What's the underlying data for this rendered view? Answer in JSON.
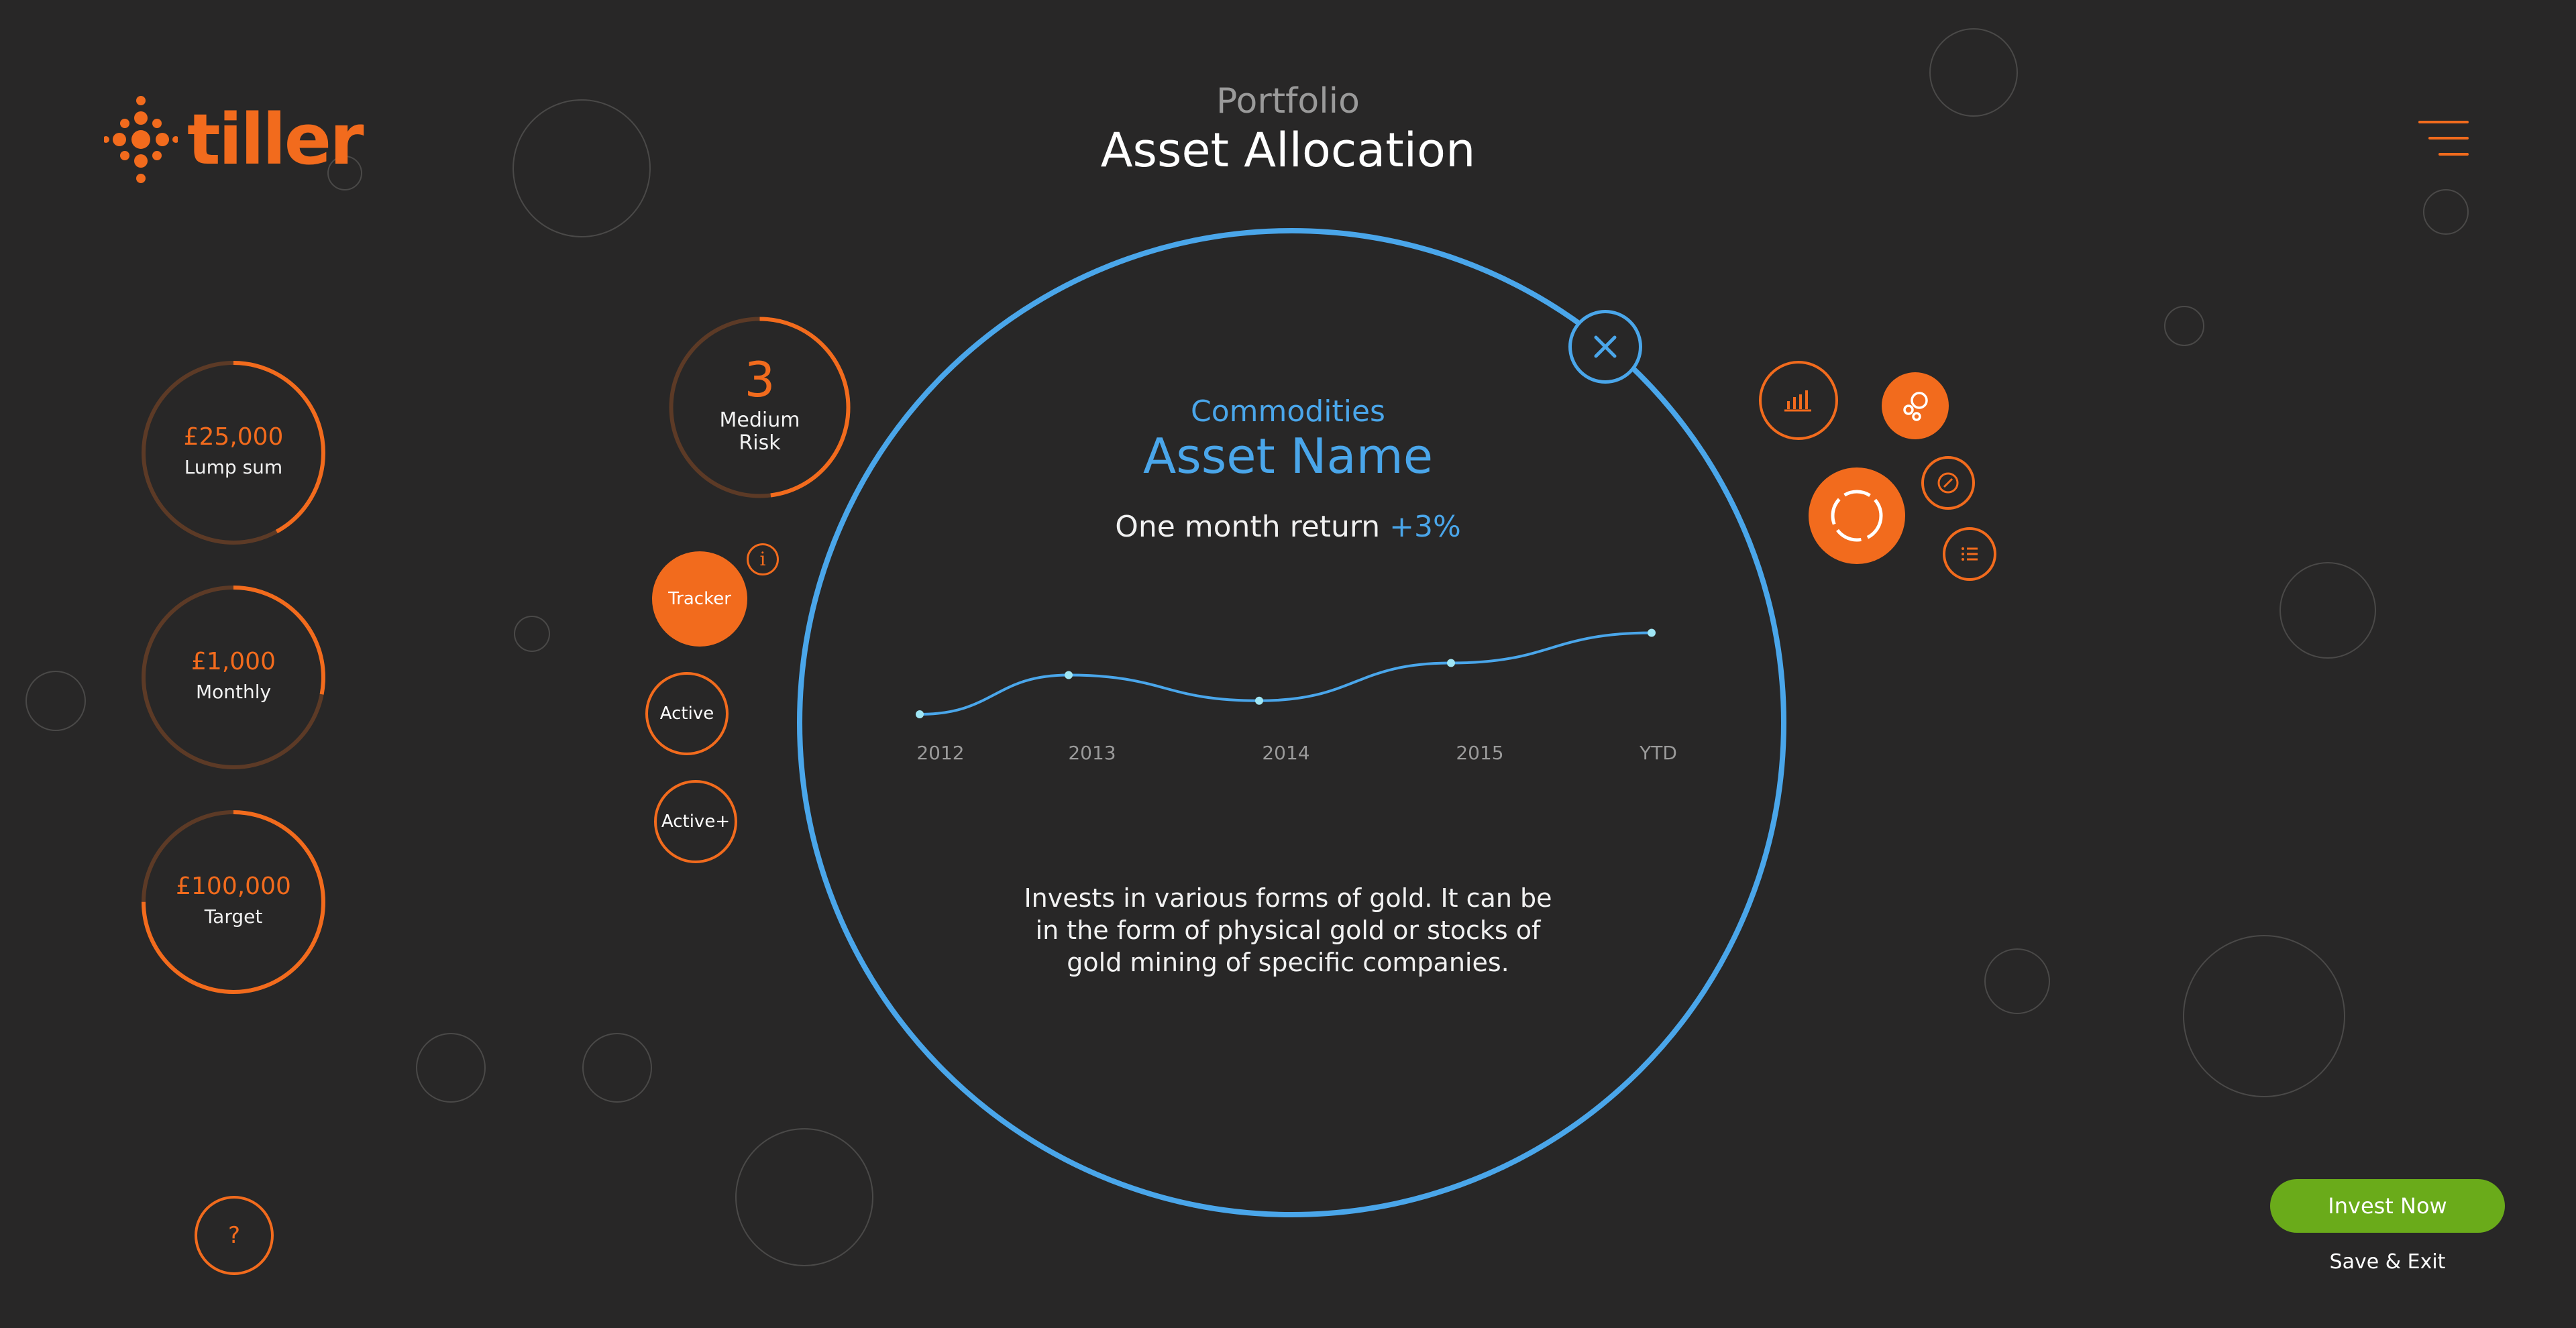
{
  "brand": {
    "name": "tiller",
    "color": "#f26b1d"
  },
  "header": {
    "subtitle": "Portfolio",
    "title": "Asset Allocation"
  },
  "stats": [
    {
      "value": "£25,000",
      "label": "Lump sum",
      "progress": 0.42
    },
    {
      "value": "£1,000",
      "label": "Monthly",
      "progress": 0.28
    },
    {
      "value": "£100,000",
      "label": "Target",
      "progress": 0.75
    }
  ],
  "risk": {
    "level": "3",
    "label_line1": "Medium",
    "label_line2": "Risk",
    "progress": 0.48
  },
  "strategies": {
    "tracker": "Tracker",
    "active": "Active",
    "active_plus": "Active+",
    "info": "i"
  },
  "asset": {
    "category": "Commodities",
    "name": "Asset Name",
    "return_label": "One month return",
    "return_value": "+3%",
    "description_line1": "Invests in various forms of gold. It can be",
    "description_line2": "in the form of physical gold or stocks of",
    "description_line3": "gold mining of specific companies."
  },
  "chart_data": {
    "type": "line",
    "categories": [
      "2012",
      "2013",
      "2014",
      "2015",
      "YTD"
    ],
    "values": [
      0,
      2.6,
      0.9,
      3.4,
      5.4
    ],
    "title": "",
    "xlabel": "",
    "ylabel": "",
    "color": "#4aa6ea"
  },
  "right_icons": [
    "bar-chart-icon",
    "bubbles-icon",
    "donut-chart-icon",
    "compass-icon",
    "list-icon"
  ],
  "help": {
    "label": "?"
  },
  "actions": {
    "invest": "Invest Now",
    "save": "Save & Exit"
  },
  "colors": {
    "accent": "#f26b1d",
    "blue": "#4aa6ea",
    "green": "#6aab1a",
    "background": "#282727"
  }
}
